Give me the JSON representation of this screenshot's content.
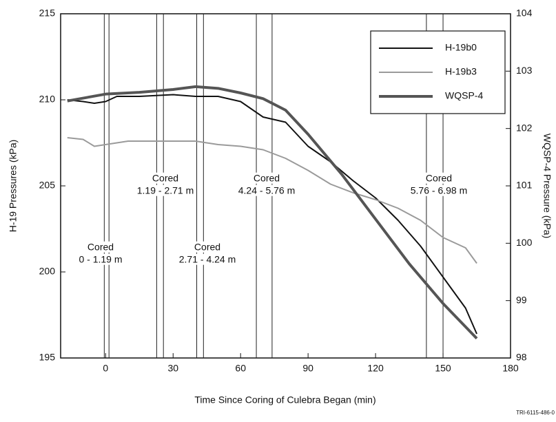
{
  "chart_data": {
    "type": "line",
    "xlabel": "Time Since Coring of Culebra Began (min)",
    "ylabel": "H-19 Pressures (kPa)",
    "y2label": "WQSP-4 Pressure (kPa)",
    "xlim": [
      -20,
      180
    ],
    "xticks": [
      0,
      30,
      60,
      90,
      120,
      150,
      180
    ],
    "ylim": [
      195,
      215
    ],
    "yticks": [
      195,
      200,
      205,
      210,
      215
    ],
    "y2lim": [
      98,
      104
    ],
    "y2ticks": [
      98,
      99,
      100,
      101,
      102,
      103,
      104
    ],
    "vlines": [
      -0.6,
      1.5,
      22.7,
      25.7,
      40.5,
      43.5,
      67,
      74,
      142.6,
      150
    ],
    "annotations": [
      [
        "Cored",
        "0 - 1.19 m"
      ],
      [
        "Cored",
        "1.19 - 2.71 m"
      ],
      [
        "Cored",
        "2.71 - 4.24 m"
      ],
      [
        "Cored",
        "4.24 - 5.76 m"
      ],
      [
        "Cored",
        "5.76 - 6.98 m"
      ]
    ],
    "footnote": "TRI-6115-486-0",
    "legend": "upper right",
    "series": [
      {
        "name": "H-19b0",
        "color": "#111111",
        "width": 2,
        "x": [
          -17,
          -10,
          -5,
          0,
          5,
          15,
          30,
          40,
          50,
          60,
          70,
          80,
          90,
          100,
          110,
          120,
          130,
          140,
          150,
          160,
          165
        ],
        "values": [
          210.0,
          209.9,
          209.8,
          209.9,
          210.2,
          210.2,
          210.3,
          210.2,
          210.2,
          209.9,
          209.0,
          208.7,
          207.3,
          206.4,
          205.3,
          204.3,
          203.0,
          201.5,
          199.7,
          197.9,
          196.4
        ]
      },
      {
        "name": "H-19b3",
        "color": "#9a9a9a",
        "width": 2,
        "x": [
          -17,
          -10,
          -5,
          0,
          10,
          25,
          40,
          50,
          60,
          70,
          80,
          90,
          100,
          110,
          120,
          130,
          140,
          150,
          160,
          165
        ],
        "values": [
          207.8,
          207.7,
          207.3,
          207.4,
          207.6,
          207.6,
          207.6,
          207.4,
          207.3,
          207.1,
          206.6,
          205.9,
          205.1,
          204.6,
          204.2,
          203.7,
          203.0,
          202.0,
          201.4,
          200.5
        ]
      },
      {
        "name": "WQSP-4",
        "color": "#555555",
        "width": 4,
        "axis": "y2",
        "x": [
          -17,
          0,
          15,
          30,
          40,
          50,
          60,
          70,
          80,
          90,
          105,
          120,
          135,
          150,
          165
        ],
        "values": [
          102.48,
          102.6,
          102.63,
          102.68,
          102.73,
          102.7,
          102.62,
          102.52,
          102.32,
          101.9,
          101.2,
          100.42,
          99.64,
          98.95,
          98.34
        ]
      }
    ]
  }
}
